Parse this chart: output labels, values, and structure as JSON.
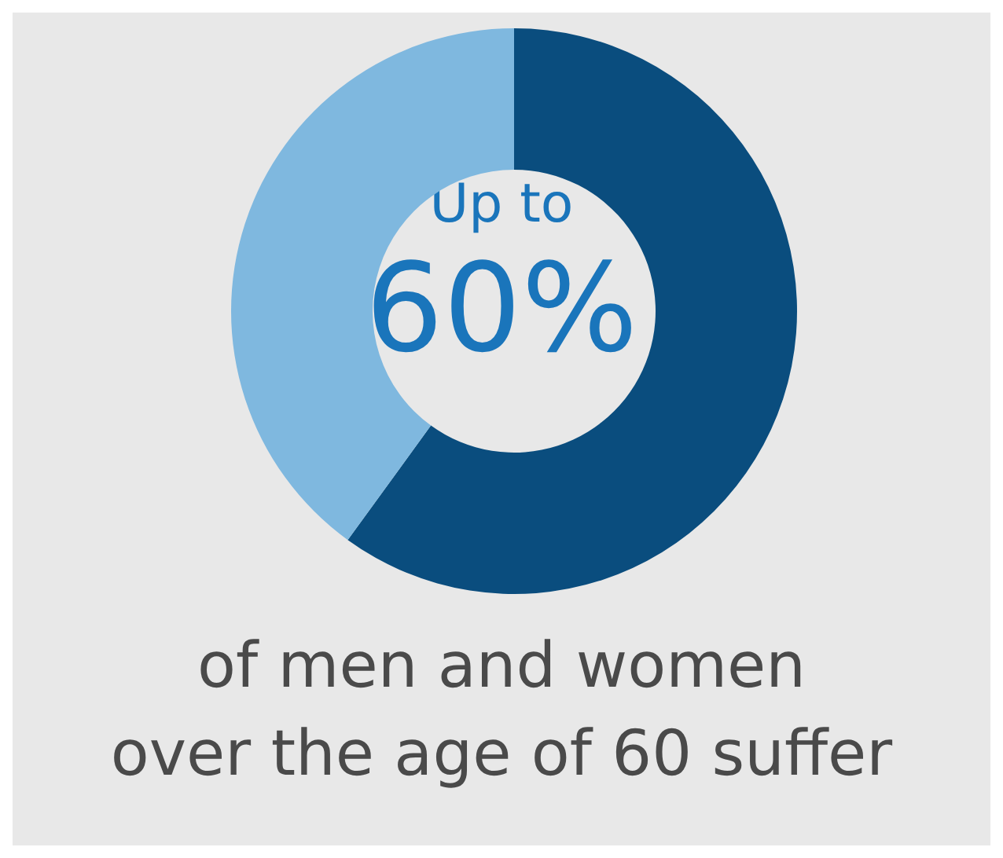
{
  "chart_data": {
    "type": "donut",
    "categories": [
      null,
      null
    ],
    "values": [
      60,
      40
    ],
    "colors": [
      "#0a4d7e",
      "#7fb8df"
    ],
    "annotations": [
      "Up to",
      "60%",
      "of men and women",
      "over the age of 60 suffer"
    ]
  }
}
